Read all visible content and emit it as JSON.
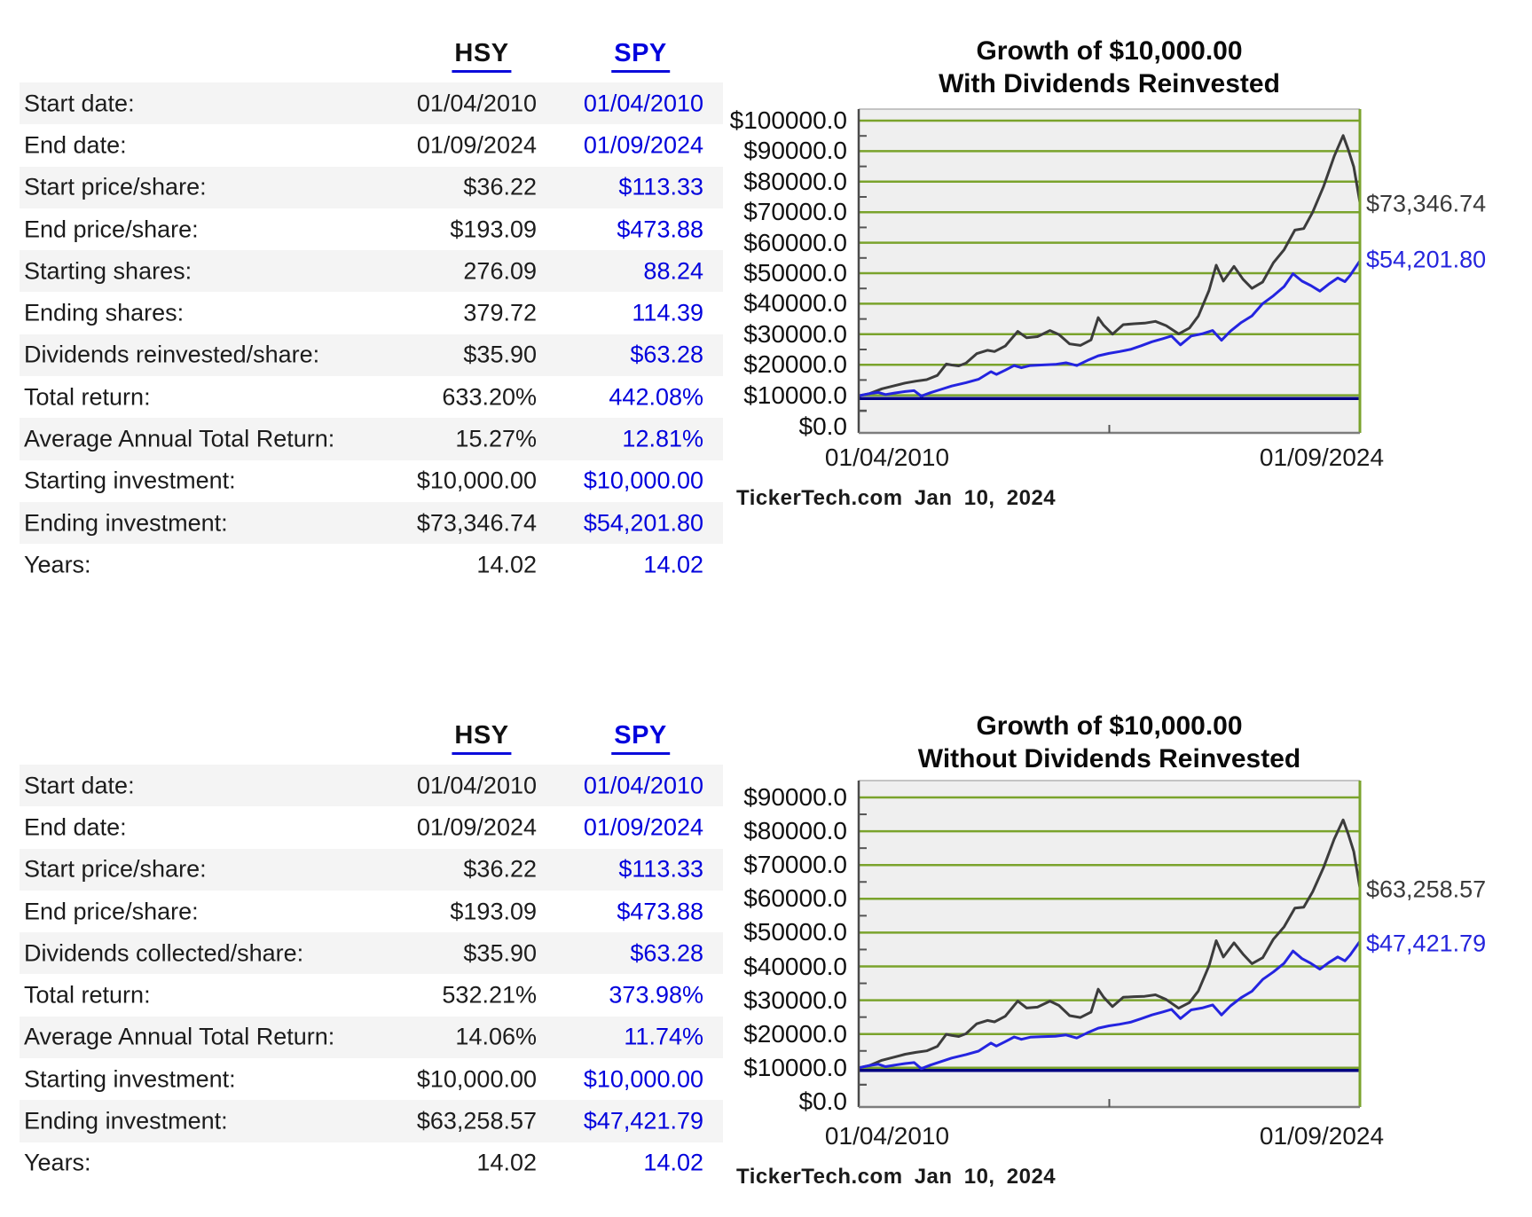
{
  "colors": {
    "link_blue": "#0202dd",
    "spy_value_blue": "#0202dd",
    "hsy_value_black": "#1c1c1c",
    "stripe_gray": "#f4f4f4",
    "plot_background": "#efefef",
    "gridline_olive": "#7aa32c",
    "hsy_line": "#3c3c3c",
    "spy_line": "#2424e0",
    "baseline_navy": "#000080"
  },
  "tables": [
    {
      "header": {
        "hsy": "HSY",
        "spy": "SPY"
      },
      "rows": [
        {
          "label": "Start date:",
          "hsy": "01/04/2010",
          "spy": "01/04/2010"
        },
        {
          "label": "End date:",
          "hsy": "01/09/2024",
          "spy": "01/09/2024"
        },
        {
          "label": "Start price/share:",
          "hsy": "$36.22",
          "spy": "$113.33"
        },
        {
          "label": "End price/share:",
          "hsy": "$193.09",
          "spy": "$473.88"
        },
        {
          "label": "Starting shares:",
          "hsy": "276.09",
          "spy": "88.24"
        },
        {
          "label": "Ending shares:",
          "hsy": "379.72",
          "spy": "114.39"
        },
        {
          "label": "Dividends reinvested/share:",
          "hsy": "$35.90",
          "spy": "$63.28"
        },
        {
          "label": "Total return:",
          "hsy": "633.20%",
          "spy": "442.08%"
        },
        {
          "label": "Average Annual Total Return:",
          "hsy": "15.27%",
          "spy": "12.81%"
        },
        {
          "label": "Starting investment:",
          "hsy": "$10,000.00",
          "spy": "$10,000.00"
        },
        {
          "label": "Ending investment:",
          "hsy": "$73,346.74",
          "spy": "$54,201.80"
        },
        {
          "label": "Years:",
          "hsy": "14.02",
          "spy": "14.02"
        }
      ]
    },
    {
      "header": {
        "hsy": "HSY",
        "spy": "SPY"
      },
      "rows": [
        {
          "label": "Start date:",
          "hsy": "01/04/2010",
          "spy": "01/04/2010"
        },
        {
          "label": "End date:",
          "hsy": "01/09/2024",
          "spy": "01/09/2024"
        },
        {
          "label": "Start price/share:",
          "hsy": "$36.22",
          "spy": "$113.33"
        },
        {
          "label": "End price/share:",
          "hsy": "$193.09",
          "spy": "$473.88"
        },
        {
          "label": "Dividends collected/share:",
          "hsy": "$35.90",
          "spy": "$63.28"
        },
        {
          "label": "Total return:",
          "hsy": "532.21%",
          "spy": "373.98%"
        },
        {
          "label": "Average Annual Total Return:",
          "hsy": "14.06%",
          "spy": "11.74%"
        },
        {
          "label": "Starting investment:",
          "hsy": "$10,000.00",
          "spy": "$10,000.00"
        },
        {
          "label": "Ending investment:",
          "hsy": "$63,258.57",
          "spy": "$47,421.79"
        },
        {
          "label": "Years:",
          "hsy": "14.02",
          "spy": "14.02"
        }
      ]
    }
  ],
  "chart_data": [
    {
      "type": "line",
      "title_lines": [
        "Growth of $10,000.00",
        "With Dividends Reinvested"
      ],
      "y_ticks": [
        "$100000.0",
        "$90000.0",
        "$80000.0",
        "$70000.0",
        "$60000.0",
        "$50000.0",
        "$40000.0",
        "$30000.0",
        "$20000.0",
        "$10000.0",
        "$0.0"
      ],
      "ylim": [
        0,
        104000
      ],
      "x_tick_labels": [
        "01/04/2010",
        "01/09/2024"
      ],
      "x_unit": "years since start, 0 to 14.02",
      "caption": "TickerTech.com Jan 10, 2024",
      "grid": "horizontal-major",
      "legend_position": "end-of-line labels",
      "baseline": {
        "value": 10000,
        "color": "#000080"
      },
      "series": [
        {
          "name": "HSY",
          "color": "#3c3c3c",
          "end_label": "$73,346.74",
          "end_value": 73346.74,
          "points": [
            [
              0,
              10000
            ],
            [
              0.3,
              10700
            ],
            [
              0.65,
              12300
            ],
            [
              1,
              13300
            ],
            [
              1.3,
              14200
            ],
            [
              1.6,
              14800
            ],
            [
              1.9,
              15300
            ],
            [
              2.2,
              16700
            ],
            [
              2.45,
              20400
            ],
            [
              2.6,
              20100
            ],
            [
              2.8,
              19800
            ],
            [
              3,
              20700
            ],
            [
              3.3,
              23800
            ],
            [
              3.6,
              24900
            ],
            [
              3.8,
              24500
            ],
            [
              4.1,
              26300
            ],
            [
              4.45,
              31100
            ],
            [
              4.7,
              29000
            ],
            [
              5,
              29400
            ],
            [
              5.35,
              31400
            ],
            [
              5.6,
              30100
            ],
            [
              5.9,
              27000
            ],
            [
              6.2,
              26500
            ],
            [
              6.5,
              28300
            ],
            [
              6.7,
              35600
            ],
            [
              6.85,
              33100
            ],
            [
              7.1,
              30200
            ],
            [
              7.4,
              33300
            ],
            [
              7.7,
              33600
            ],
            [
              8,
              33800
            ],
            [
              8.3,
              34400
            ],
            [
              8.6,
              33000
            ],
            [
              8.95,
              30300
            ],
            [
              9.25,
              32200
            ],
            [
              9.5,
              36100
            ],
            [
              9.8,
              44500
            ],
            [
              10,
              52800
            ],
            [
              10.2,
              47600
            ],
            [
              10.5,
              52400
            ],
            [
              10.75,
              48200
            ],
            [
              11,
              45200
            ],
            [
              11.3,
              47300
            ],
            [
              11.6,
              53600
            ],
            [
              11.9,
              57900
            ],
            [
              12.2,
              64300
            ],
            [
              12.45,
              64800
            ],
            [
              12.7,
              70200
            ],
            [
              13,
              78500
            ],
            [
              13.3,
              88500
            ],
            [
              13.55,
              95300
            ],
            [
              13.7,
              90500
            ],
            [
              13.85,
              85000
            ],
            [
              14.02,
              73347
            ]
          ]
        },
        {
          "name": "SPY",
          "color": "#2424e0",
          "end_label": "$54,201.80",
          "end_value": 54201.8,
          "points": [
            [
              0,
              10000
            ],
            [
              0.35,
              10800
            ],
            [
              0.55,
              11100
            ],
            [
              0.75,
              10400
            ],
            [
              1,
              10900
            ],
            [
              1.3,
              11400
            ],
            [
              1.55,
              11700
            ],
            [
              1.75,
              9900
            ],
            [
              2,
              11000
            ],
            [
              2.3,
              12100
            ],
            [
              2.6,
              13200
            ],
            [
              3,
              14300
            ],
            [
              3.35,
              15400
            ],
            [
              3.7,
              17900
            ],
            [
              3.85,
              17000
            ],
            [
              4.1,
              18400
            ],
            [
              4.35,
              19900
            ],
            [
              4.55,
              19200
            ],
            [
              4.8,
              19900
            ],
            [
              5.1,
              20100
            ],
            [
              5.5,
              20300
            ],
            [
              5.8,
              20800
            ],
            [
              6.1,
              19900
            ],
            [
              6.4,
              21600
            ],
            [
              6.7,
              23100
            ],
            [
              7,
              23900
            ],
            [
              7.3,
              24500
            ],
            [
              7.6,
              25200
            ],
            [
              7.9,
              26400
            ],
            [
              8.2,
              27700
            ],
            [
              8.5,
              28700
            ],
            [
              8.75,
              29600
            ],
            [
              9,
              26700
            ],
            [
              9.3,
              29600
            ],
            [
              9.6,
              30300
            ],
            [
              9.9,
              31400
            ],
            [
              10.15,
              28200
            ],
            [
              10.4,
              31200
            ],
            [
              10.7,
              34000
            ],
            [
              11,
              36200
            ],
            [
              11.3,
              40200
            ],
            [
              11.6,
              42800
            ],
            [
              11.9,
              45800
            ],
            [
              12.15,
              50000
            ],
            [
              12.4,
              47600
            ],
            [
              12.65,
              46100
            ],
            [
              12.9,
              44300
            ],
            [
              13.15,
              46600
            ],
            [
              13.4,
              48600
            ],
            [
              13.6,
              47400
            ],
            [
              13.75,
              49500
            ],
            [
              14.02,
              54202
            ]
          ]
        }
      ]
    },
    {
      "type": "line",
      "title_lines": [
        "Growth of $10,000.00",
        "Without Dividends Reinvested"
      ],
      "y_ticks": [
        "$90000.0",
        "$80000.0",
        "$70000.0",
        "$60000.0",
        "$50000.0",
        "$40000.0",
        "$30000.0",
        "$20000.0",
        "$10000.0",
        "$0.0"
      ],
      "ylim": [
        0,
        95000
      ],
      "x_tick_labels": [
        "01/04/2010",
        "01/09/2024"
      ],
      "x_unit": "years since start, 0 to 14.02",
      "caption": "TickerTech.com Jan 10, 2024",
      "grid": "horizontal-major",
      "legend_position": "end-of-line labels",
      "baseline": {
        "value": 10000,
        "color": "#000080"
      },
      "series": [
        {
          "name": "HSY",
          "color": "#3c3c3c",
          "end_label": "$63,258.57",
          "end_value": 63258.57,
          "points": [
            [
              0,
              10000
            ],
            [
              0.3,
              10670
            ],
            [
              0.65,
              12220
            ],
            [
              1,
              13170
            ],
            [
              1.3,
              14020
            ],
            [
              1.6,
              14570
            ],
            [
              1.9,
              15020
            ],
            [
              2.2,
              16340
            ],
            [
              2.45,
              19910
            ],
            [
              2.6,
              19590
            ],
            [
              2.8,
              19260
            ],
            [
              3,
              20090
            ],
            [
              3.3,
              23030
            ],
            [
              3.6,
              24020
            ],
            [
              3.8,
              23590
            ],
            [
              4.1,
              25240
            ],
            [
              4.45,
              29740
            ],
            [
              4.7,
              27680
            ],
            [
              5,
              27960
            ],
            [
              5.35,
              29750
            ],
            [
              5.6,
              28450
            ],
            [
              5.9,
              25440
            ],
            [
              6.2,
              24890
            ],
            [
              6.5,
              26490
            ],
            [
              6.7,
              33250
            ],
            [
              6.85,
              30880
            ],
            [
              7.1,
              28100
            ],
            [
              7.4,
              30870
            ],
            [
              7.7,
              31060
            ],
            [
              8,
              31150
            ],
            [
              8.3,
              31590
            ],
            [
              8.6,
              30210
            ],
            [
              8.95,
              27640
            ],
            [
              9.25,
              29280
            ],
            [
              9.5,
              32700
            ],
            [
              9.8,
              40180
            ],
            [
              10,
              47620
            ],
            [
              10.2,
              42790
            ],
            [
              10.5,
              46990
            ],
            [
              10.75,
              43660
            ],
            [
              11,
              40810
            ],
            [
              11.3,
              42560
            ],
            [
              11.6,
              48060
            ],
            [
              11.9,
              51740
            ],
            [
              12.2,
              57240
            ],
            [
              12.45,
              57540
            ],
            [
              12.7,
              62130
            ],
            [
              13,
              69180
            ],
            [
              13.3,
              77660
            ],
            [
              13.55,
              83350
            ],
            [
              13.7,
              78980
            ],
            [
              13.85,
              73970
            ],
            [
              14.02,
              63259
            ]
          ]
        },
        {
          "name": "SPY",
          "color": "#2424e0",
          "end_label": "$47,421.79",
          "end_value": 47421.79,
          "points": [
            [
              0,
              10000
            ],
            [
              0.35,
              10770
            ],
            [
              0.55,
              11050
            ],
            [
              0.75,
              10330
            ],
            [
              1,
              10800
            ],
            [
              1.3,
              11270
            ],
            [
              1.55,
              11540
            ],
            [
              1.75,
              9750
            ],
            [
              2,
              10800
            ],
            [
              2.3,
              11850
            ],
            [
              2.6,
              12890
            ],
            [
              3,
              13920
            ],
            [
              3.35,
              14940
            ],
            [
              3.7,
              17310
            ],
            [
              3.85,
              16420
            ],
            [
              4.1,
              17730
            ],
            [
              4.35,
              19130
            ],
            [
              4.55,
              18420
            ],
            [
              4.8,
              19050
            ],
            [
              5.1,
              19190
            ],
            [
              5.5,
              19310
            ],
            [
              5.8,
              19720
            ],
            [
              6.1,
              18820
            ],
            [
              6.4,
              20370
            ],
            [
              6.7,
              21720
            ],
            [
              7,
              22410
            ],
            [
              7.3,
              22900
            ],
            [
              7.6,
              23490
            ],
            [
              7.9,
              24540
            ],
            [
              8.2,
              25650
            ],
            [
              8.5,
              26520
            ],
            [
              8.75,
              27290
            ],
            [
              9,
              24560
            ],
            [
              9.3,
              27140
            ],
            [
              9.6,
              27700
            ],
            [
              9.9,
              28620
            ],
            [
              10.15,
              25650
            ],
            [
              10.4,
              28310
            ],
            [
              10.7,
              30760
            ],
            [
              11,
              32650
            ],
            [
              11.3,
              36140
            ],
            [
              11.6,
              38380
            ],
            [
              11.9,
              40940
            ],
            [
              12.15,
              44580
            ],
            [
              12.4,
              42320
            ],
            [
              12.65,
              40880
            ],
            [
              12.9,
              39190
            ],
            [
              13.15,
              41130
            ],
            [
              13.4,
              42800
            ],
            [
              13.6,
              41660
            ],
            [
              13.75,
              43420
            ],
            [
              14.02,
              47422
            ]
          ]
        }
      ]
    }
  ]
}
